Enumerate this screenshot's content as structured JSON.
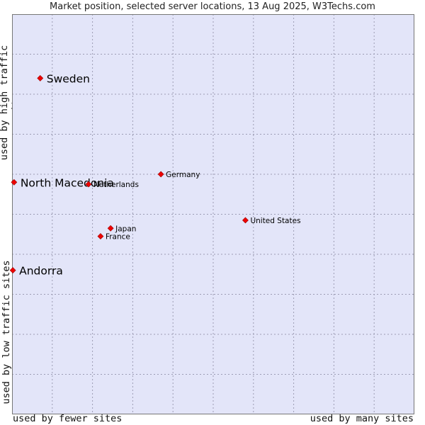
{
  "chart_data": {
    "type": "scatter",
    "title": "Market position, selected server locations, 13 Aug 2025, W3Techs.com",
    "xlabel_left": "used by fewer sites",
    "xlabel_right": "used by many sites",
    "ylabel_high": "used by high traffic sites",
    "ylabel_low": "used by low traffic sites",
    "xlim": [
      0,
      100
    ],
    "ylim": [
      0,
      100
    ],
    "grid": true,
    "background_color": "#e3e5f9",
    "grid_color": "#9c9cb4",
    "marker_color": "#ee0000",
    "points": [
      {
        "name": "Sweden",
        "x": 7,
        "y": 84,
        "label_size": "large"
      },
      {
        "name": "North Macedonia",
        "x": 0.5,
        "y": 58,
        "label_size": "large"
      },
      {
        "name": "Andorra",
        "x": 0.2,
        "y": 36,
        "label_size": "large"
      },
      {
        "name": "Netherlands",
        "x": 19,
        "y": 57.5,
        "label_size": "small"
      },
      {
        "name": "Germany",
        "x": 37,
        "y": 60,
        "label_size": "small"
      },
      {
        "name": "United States",
        "x": 58,
        "y": 48.5,
        "label_size": "small"
      },
      {
        "name": "Japan",
        "x": 24.5,
        "y": 46.5,
        "label_size": "small"
      },
      {
        "name": "France",
        "x": 22,
        "y": 44.5,
        "label_size": "small"
      }
    ]
  }
}
